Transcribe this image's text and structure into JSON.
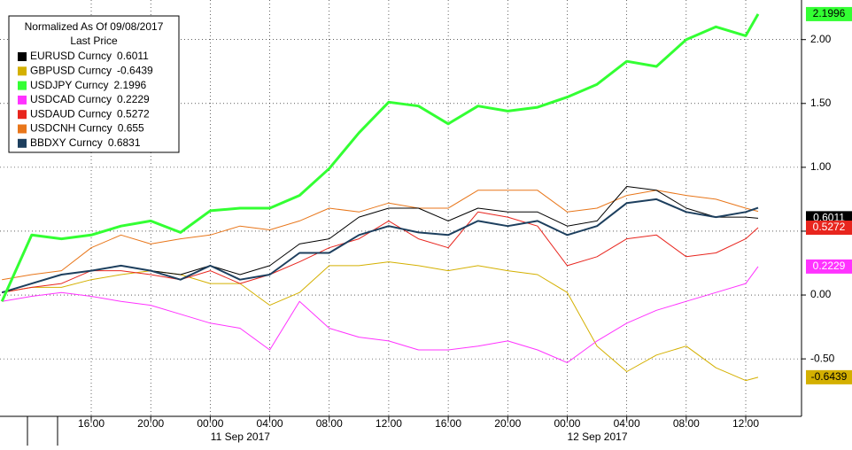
{
  "chart_data": {
    "type": "line",
    "legend_title": [
      "Normalized As Of 09/08/2017",
      "Last Price"
    ],
    "legend": "upper left",
    "grid": true,
    "x": [
      "2017-09-10T10:00",
      "2017-09-10T12:00",
      "2017-09-10T14:00",
      "2017-09-10T16:00",
      "2017-09-10T18:00",
      "2017-09-10T20:00",
      "2017-09-10T22:00",
      "2017-09-11T00:00",
      "2017-09-11T02:00",
      "2017-09-11T04:00",
      "2017-09-11T06:00",
      "2017-09-11T08:00",
      "2017-09-11T10:00",
      "2017-09-11T12:00",
      "2017-09-11T14:00",
      "2017-09-11T16:00",
      "2017-09-11T18:00",
      "2017-09-11T20:00",
      "2017-09-11T22:00",
      "2017-09-12T00:00",
      "2017-09-12T02:00",
      "2017-09-12T04:00",
      "2017-09-12T06:00",
      "2017-09-12T08:00",
      "2017-09-12T10:00",
      "2017-09-12T12:00",
      "2017-09-12T12:50"
    ],
    "xlim": [
      "2017-09-10T09:52",
      "2017-09-12T15:45"
    ],
    "xticks": [
      {
        "value": "2017-09-10T16:00",
        "label": "16:00"
      },
      {
        "value": "2017-09-10T20:00",
        "label": "20:00"
      },
      {
        "value": "2017-09-11T00:00",
        "label": "00:00"
      },
      {
        "value": "2017-09-11T04:00",
        "label": "04:00"
      },
      {
        "value": "2017-09-11T08:00",
        "label": "08:00"
      },
      {
        "value": "2017-09-11T12:00",
        "label": "12:00"
      },
      {
        "value": "2017-09-11T16:00",
        "label": "16:00"
      },
      {
        "value": "2017-09-11T20:00",
        "label": "20:00"
      },
      {
        "value": "2017-09-12T00:00",
        "label": "00:00"
      },
      {
        "value": "2017-09-12T04:00",
        "label": "04:00"
      },
      {
        "value": "2017-09-12T08:00",
        "label": "08:00"
      },
      {
        "value": "2017-09-12T12:00",
        "label": "12:00"
      }
    ],
    "x_date_labels": [
      "11 Sep 2017",
      "12 Sep 2017"
    ],
    "ylim": [
      -0.95,
      2.31
    ],
    "yticks": [
      {
        "value": 2,
        "label": "2.00"
      },
      {
        "value": 1.5,
        "label": "1.50"
      },
      {
        "value": 1,
        "label": "1.00"
      },
      {
        "value": 0.5,
        "label": "0.50"
      },
      {
        "value": 0,
        "label": "0.00"
      },
      {
        "value": -0.5,
        "label": "-0.50"
      }
    ],
    "series": [
      {
        "name": "EURUSD Curncy",
        "color": "#000000",
        "label_last": true,
        "values": [
          0.02,
          0.09,
          0.16,
          0.19,
          0.23,
          0.19,
          0.16,
          0.23,
          0.16,
          0.23,
          0.4,
          0.44,
          0.61,
          0.68,
          0.68,
          0.58,
          0.68,
          0.65,
          0.65,
          0.54,
          0.58,
          0.85,
          0.82,
          0.68,
          0.61,
          0.61,
          0.6011
        ]
      },
      {
        "name": "GBPUSD Curncy",
        "color": "#d4b000",
        "label_last": true,
        "values": [
          0.02,
          0.06,
          0.06,
          0.12,
          0.16,
          0.19,
          0.16,
          0.09,
          0.09,
          -0.08,
          0.02,
          0.23,
          0.23,
          0.26,
          0.23,
          0.19,
          0.23,
          0.19,
          0.16,
          0.02,
          -0.4,
          -0.6,
          -0.47,
          -0.4,
          -0.57,
          -0.67,
          -0.6439
        ]
      },
      {
        "name": "USDJPY Curncy",
        "color": "#33ff33",
        "label_last": true,
        "values": [
          -0.05,
          0.47,
          0.44,
          0.47,
          0.54,
          0.58,
          0.49,
          0.66,
          0.68,
          0.68,
          0.78,
          0.99,
          1.27,
          1.51,
          1.48,
          1.34,
          1.48,
          1.44,
          1.47,
          1.55,
          1.65,
          1.83,
          1.79,
          2.0,
          2.1,
          2.03,
          2.1996
        ]
      },
      {
        "name": "USDCAD Curncy",
        "color": "#ff33ff",
        "label_last": true,
        "values": [
          -0.05,
          -0.01,
          0.02,
          -0.01,
          -0.05,
          -0.08,
          -0.15,
          -0.22,
          -0.26,
          -0.43,
          -0.05,
          -0.26,
          -0.33,
          -0.36,
          -0.43,
          -0.43,
          -0.4,
          -0.36,
          -0.43,
          -0.53,
          -0.36,
          -0.22,
          -0.12,
          -0.05,
          0.02,
          0.09,
          0.2229
        ]
      },
      {
        "name": "USDAUD Curncy",
        "color": "#e8251e",
        "label_last": true,
        "values": [
          0.02,
          0.06,
          0.09,
          0.19,
          0.19,
          0.16,
          0.12,
          0.19,
          0.09,
          0.16,
          0.26,
          0.37,
          0.44,
          0.58,
          0.44,
          0.37,
          0.65,
          0.61,
          0.54,
          0.23,
          0.3,
          0.44,
          0.47,
          0.3,
          0.33,
          0.44,
          0.5272
        ]
      },
      {
        "name": "USDCNH Curncy",
        "color": "#e8761a",
        "values": [
          0.12,
          0.16,
          0.19,
          0.37,
          0.47,
          0.4,
          0.44,
          0.47,
          0.54,
          0.51,
          0.58,
          0.68,
          0.65,
          0.72,
          0.68,
          0.68,
          0.82,
          0.82,
          0.82,
          0.65,
          0.68,
          0.78,
          0.82,
          0.78,
          0.75,
          0.68,
          0.655
        ]
      },
      {
        "name": "BBDXY Curncy",
        "color": "#1d3f5e",
        "values": [
          0.02,
          0.09,
          0.16,
          0.19,
          0.23,
          0.19,
          0.12,
          0.23,
          0.12,
          0.16,
          0.33,
          0.33,
          0.47,
          0.54,
          0.49,
          0.47,
          0.58,
          0.54,
          0.58,
          0.47,
          0.54,
          0.72,
          0.75,
          0.65,
          0.61,
          0.65,
          0.6831
        ]
      }
    ]
  }
}
